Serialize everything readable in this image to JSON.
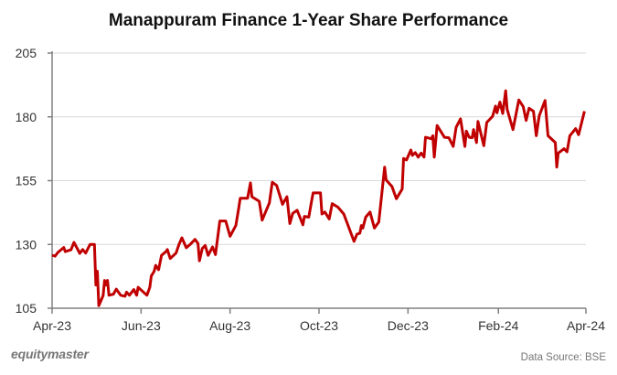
{
  "chart_data": {
    "type": "line",
    "title": "Manappuram Finance 1-Year Share Performance",
    "xlabel": "",
    "ylabel": "",
    "ylim": [
      105,
      205
    ],
    "xlim": [
      "2023-04-01",
      "2024-04-01"
    ],
    "yticks": [
      "105",
      "130",
      "155",
      "180",
      "205"
    ],
    "xticks": [
      {
        "date": "2023-04-01",
        "label": "Apr-23"
      },
      {
        "date": "2023-06-01",
        "label": "Jun-23"
      },
      {
        "date": "2023-08-01",
        "label": "Aug-23"
      },
      {
        "date": "2023-10-01",
        "label": "Oct-23"
      },
      {
        "date": "2023-12-01",
        "label": "Dec-23"
      },
      {
        "date": "2024-02-01",
        "label": "Feb-24"
      },
      {
        "date": "2024-04-01",
        "label": "Apr-24"
      }
    ],
    "grid": "horizontal",
    "line_color": "#c00000",
    "series": [
      {
        "points": [
          [
            "2023-04-01",
            125.8
          ],
          [
            "2023-04-03",
            125.4
          ],
          [
            "2023-04-05",
            126.9
          ],
          [
            "2023-04-09",
            128.8
          ],
          [
            "2023-04-10",
            127.2
          ],
          [
            "2023-04-14",
            127.9
          ],
          [
            "2023-04-16",
            130.8
          ],
          [
            "2023-04-20",
            126.5
          ],
          [
            "2023-04-22",
            128.0
          ],
          [
            "2023-04-24",
            126.6
          ],
          [
            "2023-04-27",
            130.0
          ],
          [
            "2023-04-30",
            130.0
          ],
          [
            "2023-05-01",
            114.1
          ],
          [
            "2023-05-02",
            119.5
          ],
          [
            "2023-05-03",
            106.0
          ],
          [
            "2023-05-06",
            109.9
          ],
          [
            "2023-05-07",
            115.9
          ],
          [
            "2023-05-08",
            114.1
          ],
          [
            "2023-05-09",
            115.9
          ],
          [
            "2023-05-10",
            110.1
          ],
          [
            "2023-05-13",
            110.5
          ],
          [
            "2023-05-15",
            112.5
          ],
          [
            "2023-05-18",
            110.1
          ],
          [
            "2023-05-21",
            109.7
          ],
          [
            "2023-05-22",
            111.3
          ],
          [
            "2023-05-24",
            110.1
          ],
          [
            "2023-05-27",
            112.3
          ],
          [
            "2023-05-29",
            110.1
          ],
          [
            "2023-05-30",
            113.2
          ],
          [
            "2023-06-05",
            110.1
          ],
          [
            "2023-06-07",
            113.2
          ],
          [
            "2023-06-08",
            117.6
          ],
          [
            "2023-06-10",
            119.5
          ],
          [
            "2023-06-11",
            121.8
          ],
          [
            "2023-06-13",
            120.1
          ],
          [
            "2023-06-15",
            125.7
          ],
          [
            "2023-06-18",
            127.2
          ],
          [
            "2023-06-19",
            128.0
          ],
          [
            "2023-06-21",
            124.5
          ],
          [
            "2023-06-25",
            126.6
          ],
          [
            "2023-06-27",
            130.0
          ],
          [
            "2023-06-29",
            132.6
          ],
          [
            "2023-07-02",
            128.7
          ],
          [
            "2023-07-05",
            130.2
          ],
          [
            "2023-07-08",
            132.0
          ],
          [
            "2023-07-10",
            130.4
          ],
          [
            "2023-07-11",
            123.6
          ],
          [
            "2023-07-13",
            128.4
          ],
          [
            "2023-07-15",
            129.6
          ],
          [
            "2023-07-17",
            125.7
          ],
          [
            "2023-07-20",
            129.0
          ],
          [
            "2023-07-22",
            126.0
          ],
          [
            "2023-07-25",
            139.2
          ],
          [
            "2023-07-29",
            139.2
          ],
          [
            "2023-08-01",
            133.2
          ],
          [
            "2023-08-05",
            137.4
          ],
          [
            "2023-08-07",
            144.3
          ],
          [
            "2023-08-08",
            148.1
          ],
          [
            "2023-08-13",
            148.1
          ],
          [
            "2023-08-15",
            154.1
          ],
          [
            "2023-08-16",
            148.7
          ],
          [
            "2023-08-21",
            146.9
          ],
          [
            "2023-08-23",
            139.5
          ],
          [
            "2023-08-28",
            146.3
          ],
          [
            "2023-08-30",
            154.4
          ],
          [
            "2023-09-02",
            153.1
          ],
          [
            "2023-09-06",
            145.7
          ],
          [
            "2023-09-09",
            148.7
          ],
          [
            "2023-09-11",
            138.2
          ],
          [
            "2023-09-13",
            142.2
          ],
          [
            "2023-09-16",
            143.4
          ],
          [
            "2023-09-20",
            137.7
          ],
          [
            "2023-09-21",
            141.0
          ],
          [
            "2023-09-24",
            140.7
          ],
          [
            "2023-09-26",
            147.2
          ],
          [
            "2023-09-27",
            150.2
          ],
          [
            "2023-10-01",
            150.2
          ],
          [
            "2023-10-02",
            150.2
          ],
          [
            "2023-10-03",
            141.9
          ],
          [
            "2023-10-05",
            142.7
          ],
          [
            "2023-10-08",
            140.0
          ],
          [
            "2023-10-10",
            146.0
          ],
          [
            "2023-10-14",
            144.6
          ],
          [
            "2023-10-18",
            141.9
          ],
          [
            "2023-10-25",
            131.2
          ],
          [
            "2023-10-27",
            134.0
          ],
          [
            "2023-10-29",
            134.4
          ],
          [
            "2023-10-30",
            137.4
          ],
          [
            "2023-10-31",
            136.4
          ],
          [
            "2023-11-02",
            140.7
          ],
          [
            "2023-11-05",
            142.7
          ],
          [
            "2023-11-08",
            136.4
          ],
          [
            "2023-11-11",
            138.8
          ],
          [
            "2023-11-15",
            160.3
          ],
          [
            "2023-11-16",
            155.3
          ],
          [
            "2023-11-20",
            152.7
          ],
          [
            "2023-11-23",
            147.9
          ],
          [
            "2023-11-27",
            151.7
          ],
          [
            "2023-11-28",
            163.7
          ],
          [
            "2023-11-30",
            163.1
          ],
          [
            "2023-12-03",
            167.0
          ],
          [
            "2023-12-04",
            164.9
          ],
          [
            "2023-12-06",
            166.0
          ],
          [
            "2023-12-08",
            164.2
          ],
          [
            "2023-12-10",
            165.8
          ],
          [
            "2023-12-12",
            164.2
          ],
          [
            "2023-12-13",
            172.0
          ],
          [
            "2023-12-17",
            171.4
          ],
          [
            "2023-12-18",
            172.6
          ],
          [
            "2023-12-19",
            164.2
          ],
          [
            "2023-12-21",
            176.6
          ],
          [
            "2023-12-26",
            172.0
          ],
          [
            "2023-12-29",
            171.8
          ],
          [
            "2024-01-01",
            168.4
          ],
          [
            "2024-01-03",
            175.9
          ],
          [
            "2024-01-06",
            179.2
          ],
          [
            "2024-01-09",
            168.4
          ],
          [
            "2024-01-10",
            174.4
          ],
          [
            "2024-01-12",
            172.0
          ],
          [
            "2024-01-14",
            171.8
          ],
          [
            "2024-01-15",
            175.0
          ],
          [
            "2024-01-17",
            169.9
          ],
          [
            "2024-01-18",
            178.2
          ],
          [
            "2024-01-22",
            168.7
          ],
          [
            "2024-01-24",
            177.8
          ],
          [
            "2024-01-28",
            180.2
          ],
          [
            "2024-01-30",
            184.2
          ],
          [
            "2024-01-31",
            181.6
          ],
          [
            "2024-02-02",
            185.8
          ],
          [
            "2024-02-04",
            181.3
          ],
          [
            "2024-02-06",
            190.2
          ],
          [
            "2024-02-07",
            183.0
          ],
          [
            "2024-02-11",
            175.0
          ],
          [
            "2024-02-15",
            186.6
          ],
          [
            "2024-02-18",
            184.0
          ],
          [
            "2024-02-20",
            178.6
          ],
          [
            "2024-02-22",
            183.4
          ],
          [
            "2024-02-25",
            182.2
          ],
          [
            "2024-02-27",
            172.6
          ],
          [
            "2024-02-29",
            180.4
          ],
          [
            "2024-03-04",
            186.4
          ],
          [
            "2024-03-06",
            172.6
          ],
          [
            "2024-03-11",
            169.9
          ],
          [
            "2024-03-12",
            160.3
          ],
          [
            "2024-03-13",
            165.8
          ],
          [
            "2024-03-17",
            167.5
          ],
          [
            "2024-03-19",
            166.3
          ],
          [
            "2024-03-21",
            172.6
          ],
          [
            "2024-03-25",
            175.4
          ],
          [
            "2024-03-27",
            173.0
          ],
          [
            "2024-03-31",
            182.2
          ]
        ]
      }
    ]
  },
  "footer": {
    "logo": "equitymaster",
    "source": "Data Source: BSE"
  }
}
